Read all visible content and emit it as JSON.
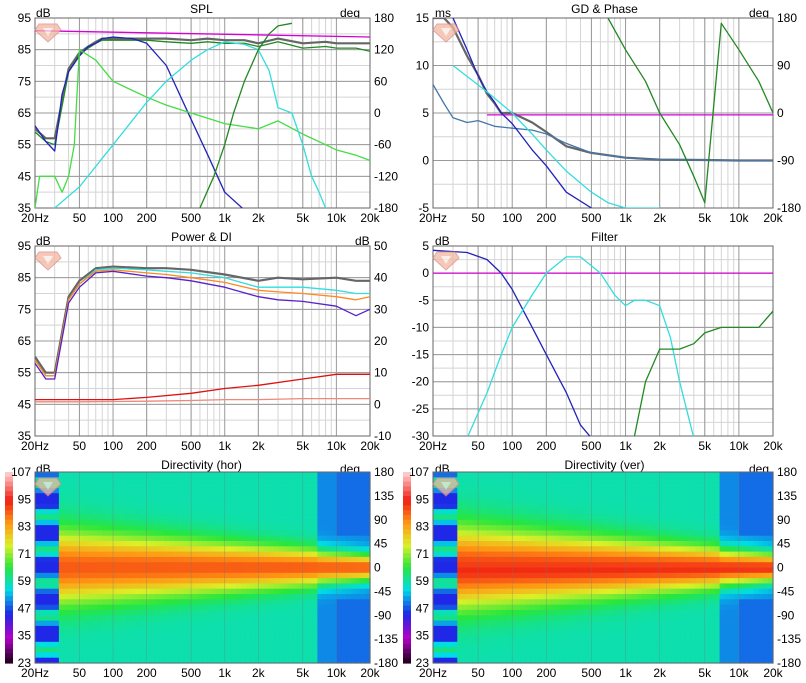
{
  "x_ticks": [
    "20Hz",
    "50",
    "100",
    "200",
    "500",
    "1k",
    "2k",
    "5k",
    "10k",
    "20k"
  ],
  "x_tick_freqs": [
    20,
    50,
    100,
    200,
    500,
    1000,
    2000,
    5000,
    10000,
    20000
  ],
  "colors": {
    "grid_major": "#9a9a9a",
    "grid_minor": "#d4d4d4",
    "magenta": "#d400d4",
    "cyan": "#33dddd",
    "blue": "#2222bb",
    "green": "#44dd44",
    "dark_green": "#228822",
    "grey": "#666666",
    "steel_blue": "#4477aa",
    "orange": "#ff8822",
    "red": "#dd1111",
    "salmon": "#ee8877",
    "purple": "#5522cc"
  },
  "panels": {
    "spl": {
      "title": "SPL",
      "left_unit": "dB",
      "right_unit": "deg",
      "left_ticks": [
        "95",
        "85",
        "75",
        "65",
        "55",
        "45",
        "35"
      ],
      "right_ticks": [
        "180",
        "120",
        "60",
        "0",
        "-60",
        "-120",
        "-180"
      ]
    },
    "gd": {
      "title": "GD & Phase",
      "left_unit": "ms",
      "right_unit": "deg",
      "left_ticks": [
        "15",
        "10",
        "5",
        "0",
        "-5"
      ],
      "right_ticks": [
        "180",
        "90",
        "0",
        "-90",
        "-180"
      ]
    },
    "power": {
      "title": "Power & DI",
      "left_unit": "dB",
      "right_unit": "dB",
      "left_ticks": [
        "95",
        "85",
        "75",
        "65",
        "55",
        "45",
        "35"
      ],
      "right_ticks": [
        "50",
        "40",
        "30",
        "20",
        "10",
        "0",
        "-10"
      ]
    },
    "filter": {
      "title": "Filter",
      "left_unit": "dB",
      "left_ticks": [
        "5",
        "0",
        "-5",
        "-10",
        "-15",
        "-20",
        "-25",
        "-30"
      ]
    },
    "dir_h": {
      "title": "Directivity (hor)",
      "left_unit": "dB",
      "right_unit": "deg",
      "left_ticks": [
        "107",
        "95",
        "83",
        "71",
        "59",
        "47",
        "35",
        "23"
      ],
      "right_ticks": [
        "180",
        "135",
        "90",
        "45",
        "0",
        "-45",
        "-90",
        "-135",
        "-180"
      ]
    },
    "dir_v": {
      "title": "Directivity (ver)",
      "left_unit": "dB",
      "right_unit": "deg",
      "left_ticks": [
        "107",
        "95",
        "83",
        "71",
        "59",
        "47",
        "35",
        "23"
      ],
      "right_ticks": [
        "180",
        "135",
        "90",
        "45",
        "0",
        "-45",
        "-90",
        "-135",
        "-180"
      ]
    }
  },
  "chart_data": [
    {
      "type": "line",
      "title": "SPL",
      "ylim": [
        35,
        95
      ],
      "y2lim": [
        -180,
        180
      ],
      "x_scale": "log",
      "xlim": [
        20,
        20000
      ],
      "series": [
        {
          "color": "#666666",
          "axis": "left",
          "x": [
            20,
            25,
            30,
            40,
            50,
            60,
            70,
            80,
            100,
            150,
            200,
            300,
            500,
            700,
            1000,
            1500,
            2000,
            3000,
            5000,
            8000,
            10000,
            15000,
            20000
          ],
          "y": [
            60,
            57,
            57,
            79,
            84,
            86,
            87.5,
            88.5,
            88.5,
            88.5,
            88.5,
            88.5,
            88,
            88.5,
            88,
            88,
            87,
            88.5,
            87,
            87.5,
            87,
            87,
            87
          ]
        },
        {
          "color": "#228822",
          "axis": "left",
          "x": [
            20,
            25,
            30,
            40,
            50,
            60,
            70,
            80,
            100,
            150,
            200,
            300,
            500,
            700,
            1000,
            1500,
            2000,
            3000,
            5000,
            8000,
            10000,
            15000,
            20000
          ],
          "y": [
            59,
            56,
            55,
            78,
            83.5,
            85.5,
            87,
            88,
            88,
            88,
            88,
            87.5,
            87,
            87.5,
            87,
            87,
            86,
            87.5,
            85.5,
            86,
            85.5,
            85.5,
            84.5
          ]
        },
        {
          "color": "#2222bb",
          "axis": "left",
          "x": [
            20,
            25,
            30,
            35,
            40,
            50,
            60,
            70,
            80,
            100,
            150,
            200,
            300,
            500,
            700,
            1000,
            1500
          ],
          "y": [
            61,
            56,
            53,
            71,
            78,
            83,
            86,
            87,
            88.5,
            89,
            88.5,
            87,
            80,
            63,
            52,
            40,
            30
          ]
        },
        {
          "color": "#44dd44",
          "axis": "right",
          "x": [
            20,
            22,
            25,
            30,
            35,
            40,
            45,
            50,
            70,
            100,
            200,
            300,
            500,
            1000,
            2000,
            3000,
            5000,
            8000,
            10000,
            15000,
            20000
          ],
          "y": [
            -180,
            -120,
            -120,
            -120,
            -150,
            -120,
            -60,
            120,
            100,
            60,
            30,
            15,
            0,
            -20,
            -30,
            -15,
            -40,
            -60,
            -70,
            -80,
            -90
          ]
        },
        {
          "color": "#33dddd",
          "axis": "right",
          "x": [
            30,
            50,
            100,
            200,
            300,
            500,
            700,
            1000,
            1500,
            2000,
            2500,
            3000,
            4000,
            5000,
            6000,
            7000,
            8000
          ],
          "y": [
            -180,
            -140,
            -60,
            20,
            60,
            100,
            120,
            135,
            130,
            120,
            80,
            10,
            0,
            -60,
            -120,
            -150,
            -180
          ]
        },
        {
          "color": "#228822",
          "axis": "right",
          "x": [
            600,
            800,
            1000,
            1200,
            1500,
            2000,
            2500,
            3000,
            4000
          ],
          "y": [
            -180,
            -120,
            -60,
            0,
            60,
            120,
            150,
            165,
            170
          ]
        },
        {
          "color": "#d400d4",
          "axis": "left",
          "x": [
            20,
            20000
          ],
          "y": [
            91,
            89
          ]
        }
      ]
    },
    {
      "type": "line",
      "title": "GD & Phase",
      "ylim": [
        -5,
        15
      ],
      "y2lim": [
        -180,
        180
      ],
      "x_scale": "log",
      "xlim": [
        20,
        20000
      ],
      "series": [
        {
          "color": "#666666",
          "axis": "left",
          "x": [
            20,
            25,
            30,
            40,
            50,
            60,
            70,
            80,
            100,
            150,
            200,
            300,
            500,
            1000,
            2000,
            5000,
            10000,
            20000
          ],
          "y": [
            15,
            15,
            14,
            11,
            9,
            7,
            6,
            5,
            5,
            4,
            3,
            1.5,
            0.8,
            0.3,
            0.1,
            0.05,
            0,
            0
          ]
        },
        {
          "color": "#4477aa",
          "axis": "left",
          "x": [
            20,
            25,
            30,
            40,
            50,
            70,
            100,
            150,
            200,
            300,
            500,
            1000,
            2000,
            5000,
            10000,
            20000
          ],
          "y": [
            8,
            6,
            4.5,
            4,
            4.2,
            3.6,
            3.4,
            3.2,
            2.8,
            1.8,
            0.8,
            0.3,
            0.1,
            0.05,
            0,
            0
          ]
        },
        {
          "color": "#d400d4",
          "axis": "left",
          "x": [
            60,
            20000
          ],
          "y": [
            4.8,
            4.8
          ]
        },
        {
          "color": "#2222bb",
          "axis": "right",
          "x": [
            30,
            40,
            50,
            60,
            70,
            80,
            100,
            150,
            200,
            300,
            500
          ],
          "y": [
            180,
            120,
            70,
            40,
            20,
            0,
            -20,
            -70,
            -100,
            -150,
            -180
          ]
        },
        {
          "color": "#33dddd",
          "axis": "right",
          "x": [
            30,
            60,
            100,
            150,
            200,
            300,
            500,
            700,
            1000,
            1500,
            2000
          ],
          "y": [
            90,
            40,
            0,
            -40,
            -70,
            -110,
            -150,
            -170,
            -180,
            -180,
            -180
          ]
        },
        {
          "color": "#228822",
          "axis": "right",
          "x": [
            700,
            1000,
            1500,
            2000,
            3000,
            4000,
            5000,
            7000,
            10000,
            15000,
            20000
          ],
          "y": [
            180,
            120,
            60,
            0,
            -60,
            -120,
            -170,
            170,
            120,
            60,
            0
          ]
        }
      ]
    },
    {
      "type": "line",
      "title": "Power & DI",
      "ylim": [
        35,
        95
      ],
      "y2lim": [
        -10,
        50
      ],
      "x_scale": "log",
      "xlim": [
        20,
        20000
      ],
      "series": [
        {
          "color": "#666666",
          "axis": "left",
          "x": [
            20,
            25,
            30,
            40,
            50,
            70,
            100,
            200,
            300,
            500,
            1000,
            2000,
            3000,
            5000,
            10000,
            15000,
            20000
          ],
          "y": [
            60,
            55,
            55,
            79,
            84,
            88,
            88.5,
            88,
            88,
            87.5,
            86,
            84,
            85,
            84.5,
            85,
            84,
            84
          ]
        },
        {
          "color": "#33dddd",
          "axis": "left",
          "x": [
            20,
            25,
            30,
            40,
            50,
            70,
            100,
            200,
            300,
            500,
            1000,
            2000,
            3000,
            5000,
            10000,
            15000,
            20000
          ],
          "y": [
            59,
            54,
            54,
            78,
            83,
            87.5,
            88,
            87.5,
            87,
            86.5,
            85,
            82,
            82,
            82,
            81,
            80,
            80
          ]
        },
        {
          "color": "#ff8822",
          "axis": "left",
          "x": [
            20,
            25,
            30,
            40,
            50,
            70,
            100,
            200,
            300,
            500,
            1000,
            2000,
            3000,
            5000,
            10000,
            15000,
            20000
          ],
          "y": [
            59,
            54,
            54,
            78,
            83,
            87,
            87.5,
            86.5,
            86,
            85,
            83.5,
            81,
            80.5,
            80,
            79,
            78,
            79
          ]
        },
        {
          "color": "#5522cc",
          "axis": "left",
          "x": [
            20,
            25,
            30,
            40,
            50,
            70,
            100,
            200,
            300,
            500,
            1000,
            2000,
            3000,
            5000,
            10000,
            15000,
            20000
          ],
          "y": [
            58,
            53,
            53,
            77,
            82,
            86.5,
            87,
            85.5,
            85,
            84,
            82,
            79,
            78,
            77.5,
            76,
            73,
            75
          ]
        },
        {
          "color": "#dd1111",
          "axis": "right",
          "x": [
            20,
            50,
            100,
            200,
            500,
            1000,
            2000,
            5000,
            10000,
            20000
          ],
          "y": [
            1.5,
            1.5,
            1.5,
            2.2,
            3.5,
            5,
            6,
            8,
            9.5,
            9.5
          ]
        },
        {
          "color": "#ee8877",
          "axis": "right",
          "x": [
            20,
            50,
            100,
            200,
            500,
            1000,
            2000,
            5000,
            10000,
            20000
          ],
          "y": [
            0.8,
            0.8,
            0.9,
            1,
            1.2,
            1.5,
            1.5,
            1.8,
            1.8,
            1.8
          ]
        }
      ]
    },
    {
      "type": "line",
      "title": "Filter",
      "ylim": [
        -30,
        5
      ],
      "x_scale": "log",
      "xlim": [
        20,
        20000
      ],
      "series": [
        {
          "color": "#d400d4",
          "x": [
            20,
            20000
          ],
          "y": [
            0,
            0
          ]
        },
        {
          "color": "#2222bb",
          "x": [
            20,
            40,
            60,
            80,
            100,
            150,
            200,
            300,
            400,
            500
          ],
          "y": [
            4.2,
            3.8,
            2.5,
            0,
            -3,
            -10,
            -15,
            -22,
            -28,
            -31
          ]
        },
        {
          "color": "#33dddd",
          "x": [
            40,
            60,
            80,
            100,
            150,
            200,
            300,
            400,
            600,
            800,
            1000,
            1200,
            1500,
            2000,
            2500,
            3000,
            4000
          ],
          "y": [
            -31,
            -22,
            -15,
            -10,
            -4,
            0,
            3,
            3,
            0,
            -4,
            -6,
            -5,
            -5,
            -6,
            -12,
            -20,
            -31
          ]
        },
        {
          "color": "#228822",
          "x": [
            1200,
            1500,
            2000,
            2500,
            3000,
            4000,
            5000,
            7000,
            10000,
            15000,
            20000
          ],
          "y": [
            -30,
            -20,
            -14,
            -14,
            -14,
            -13,
            -11,
            -10,
            -10,
            -10,
            -7
          ]
        }
      ]
    },
    {
      "type": "heatmap",
      "title": "Directivity (hor)",
      "zlim": [
        23,
        107
      ],
      "ylim": [
        -180,
        180
      ],
      "x_scale": "log",
      "xlim": [
        20,
        20000
      ]
    },
    {
      "type": "heatmap",
      "title": "Directivity (ver)",
      "zlim": [
        23,
        107
      ],
      "ylim": [
        -180,
        180
      ],
      "x_scale": "log",
      "xlim": [
        20,
        20000
      ]
    }
  ]
}
